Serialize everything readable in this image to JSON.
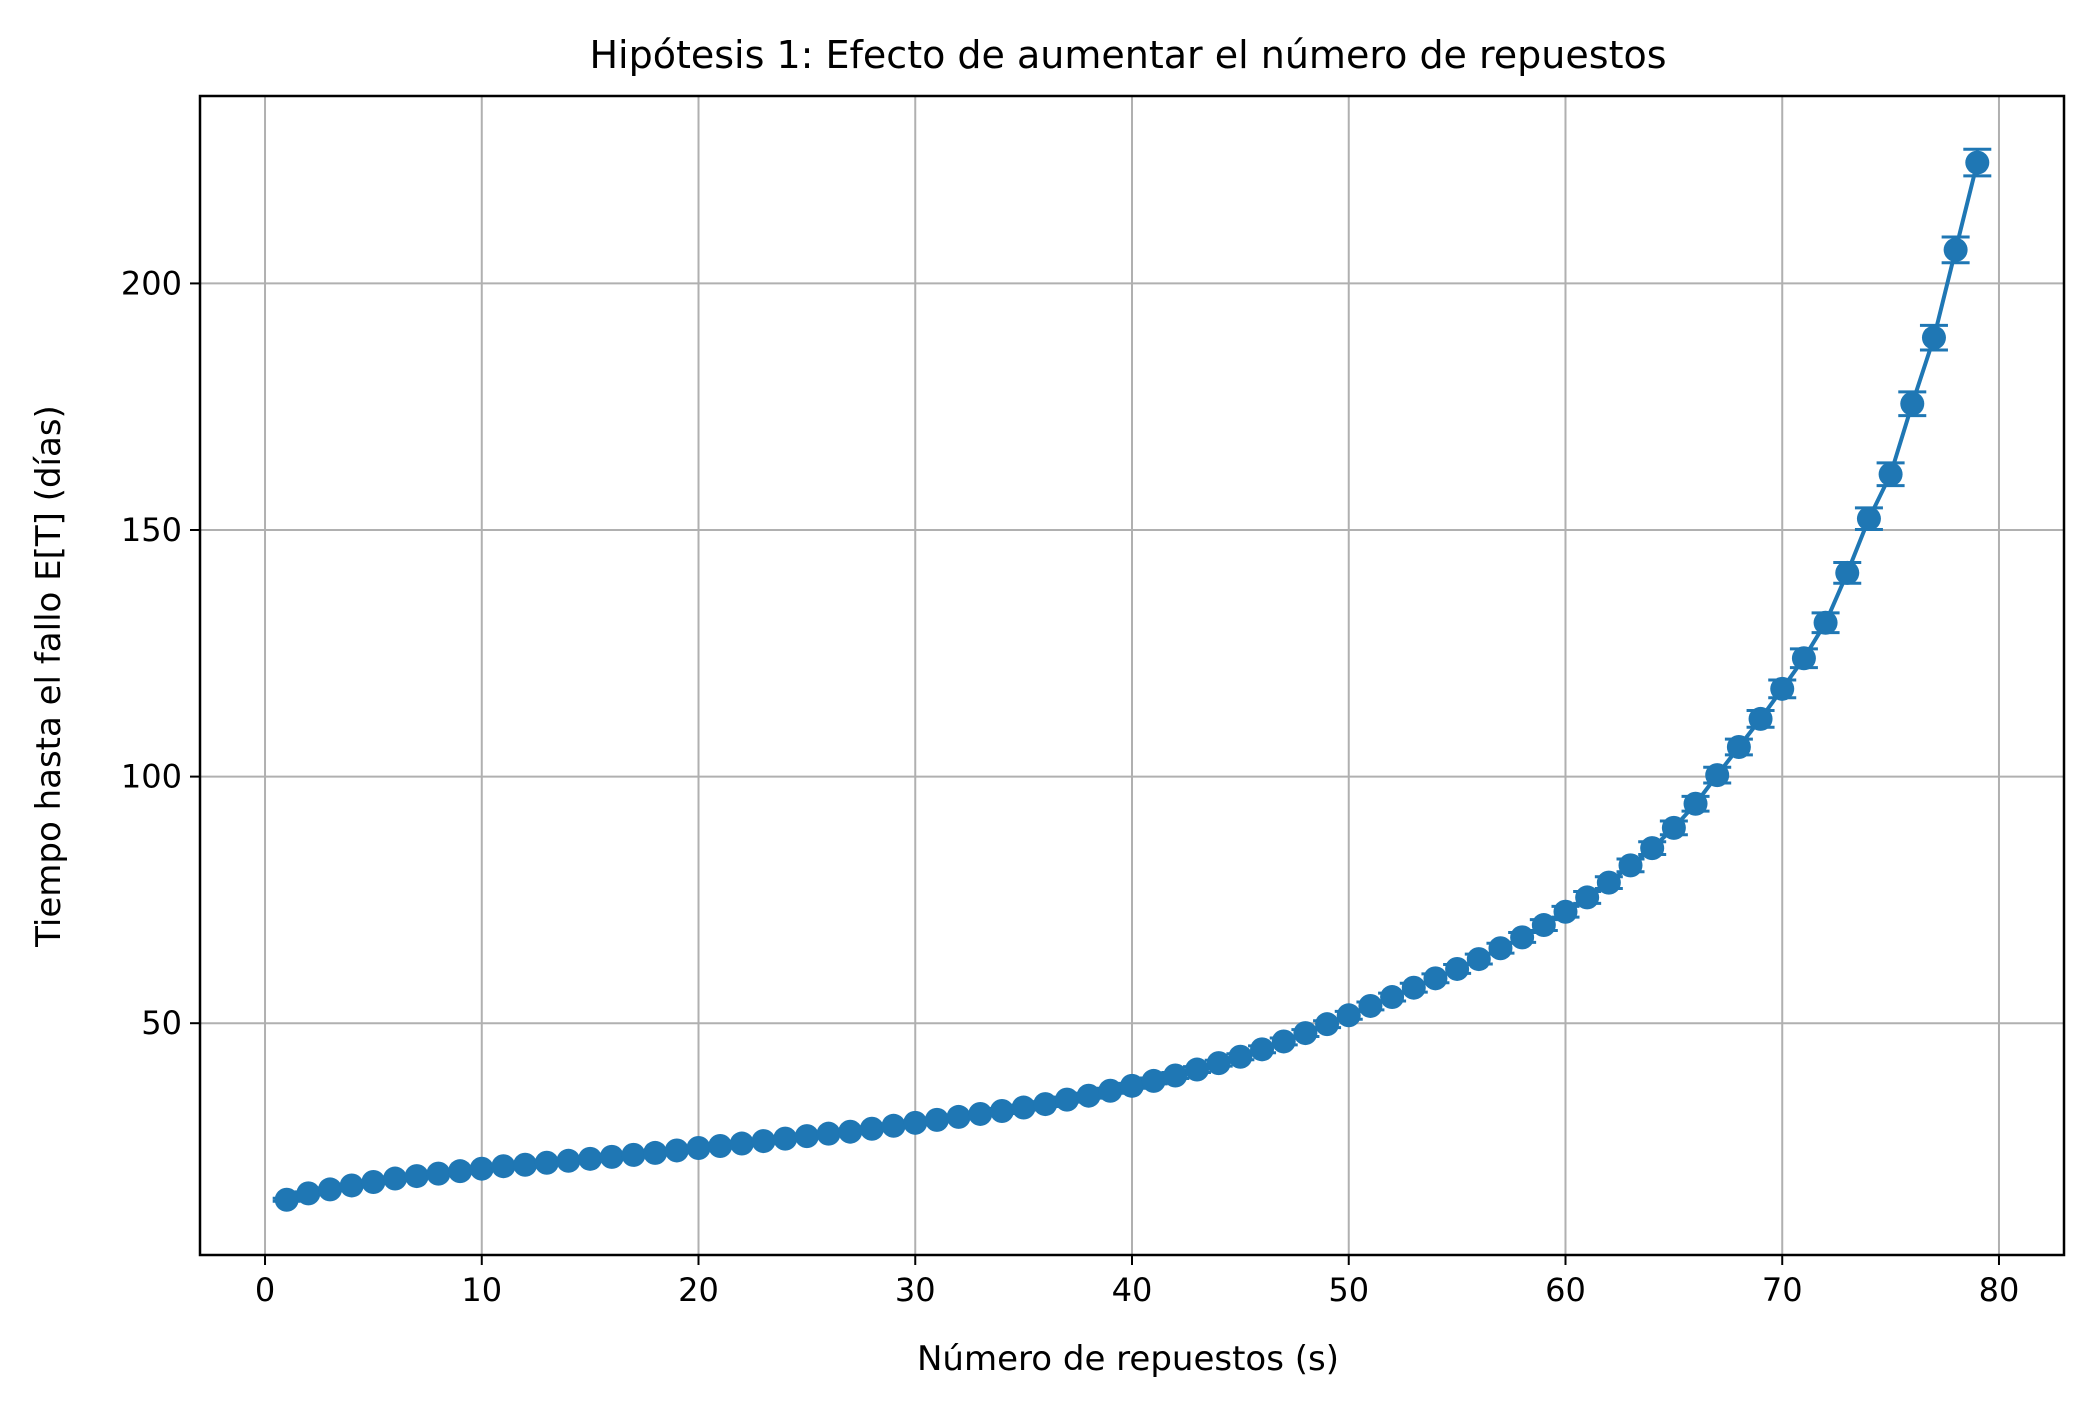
{
  "chart_data": {
    "type": "line",
    "title": "Hipótesis 1: Efecto de aumentar el número de repuestos",
    "xlabel": "Número de repuestos (s)",
    "ylabel": "Tiempo hasta el fallo E[T] (días)",
    "xlim": [
      -3,
      83
    ],
    "ylim": [
      3,
      238
    ],
    "xticks": [
      0,
      10,
      20,
      30,
      40,
      50,
      60,
      70,
      80
    ],
    "yticks": [
      50,
      100,
      150,
      200
    ],
    "grid": true,
    "error_bars": true,
    "color": "#1f77b4",
    "series": [
      {
        "x": [
          1,
          2,
          3,
          4,
          5,
          6,
          7,
          8,
          9,
          10,
          11,
          12,
          13,
          14,
          15,
          16,
          17,
          18,
          19,
          20,
          21,
          22,
          23,
          24,
          25,
          26,
          27,
          28,
          29,
          30,
          31,
          32,
          33,
          34,
          35,
          36,
          37,
          38,
          39,
          40,
          41,
          42,
          43,
          44,
          45,
          46,
          47,
          48,
          49,
          50,
          51,
          52,
          53,
          54,
          55,
          56,
          57,
          58,
          59,
          60,
          61,
          62,
          63,
          64,
          65,
          66,
          67,
          68,
          69,
          70,
          71,
          72,
          73,
          74,
          75,
          76,
          77,
          78,
          79
        ],
        "y": [
          14.2,
          15.5,
          16.3,
          17.1,
          17.8,
          18.5,
          19.0,
          19.5,
          20.0,
          20.5,
          21.0,
          21.3,
          21.7,
          22.1,
          22.5,
          22.9,
          23.3,
          23.7,
          24.2,
          24.7,
          25.1,
          25.6,
          26.1,
          26.6,
          27.1,
          27.6,
          28.0,
          28.6,
          29.2,
          29.8,
          30.4,
          31.0,
          31.6,
          32.2,
          32.9,
          33.6,
          34.5,
          35.3,
          36.3,
          37.3,
          38.3,
          39.4,
          40.6,
          41.9,
          43.2,
          44.7,
          46.3,
          48.0,
          49.8,
          51.6,
          53.5,
          55.3,
          57.2,
          59.1,
          61.0,
          63.0,
          65.2,
          67.4,
          69.9,
          72.6,
          75.5,
          78.5,
          82.0,
          85.5,
          89.6,
          94.5,
          100.3,
          106.0,
          111.7,
          117.8,
          124.0,
          131.2,
          141.3,
          152.3,
          161.3,
          175.6,
          189.0,
          206.8,
          224.5
        ],
        "err": [
          0.3,
          0.3,
          0.3,
          0.3,
          0.3,
          0.3,
          0.3,
          0.3,
          0.3,
          0.3,
          0.3,
          0.3,
          0.3,
          0.3,
          0.3,
          0.3,
          0.3,
          0.3,
          0.3,
          0.3,
          0.4,
          0.4,
          0.4,
          0.4,
          0.4,
          0.4,
          0.4,
          0.4,
          0.4,
          0.4,
          0.4,
          0.4,
          0.4,
          0.5,
          0.5,
          0.5,
          0.5,
          0.5,
          0.5,
          0.5,
          0.6,
          0.6,
          0.6,
          0.6,
          0.6,
          0.7,
          0.7,
          0.7,
          0.7,
          0.8,
          0.8,
          0.8,
          0.9,
          0.9,
          0.9,
          1.0,
          1.0,
          1.0,
          1.1,
          1.1,
          1.2,
          1.2,
          1.3,
          1.3,
          1.4,
          1.5,
          1.6,
          1.6,
          1.7,
          1.8,
          1.9,
          2.0,
          2.1,
          2.2,
          2.3,
          2.4,
          2.5,
          2.6,
          2.7
        ]
      }
    ]
  }
}
